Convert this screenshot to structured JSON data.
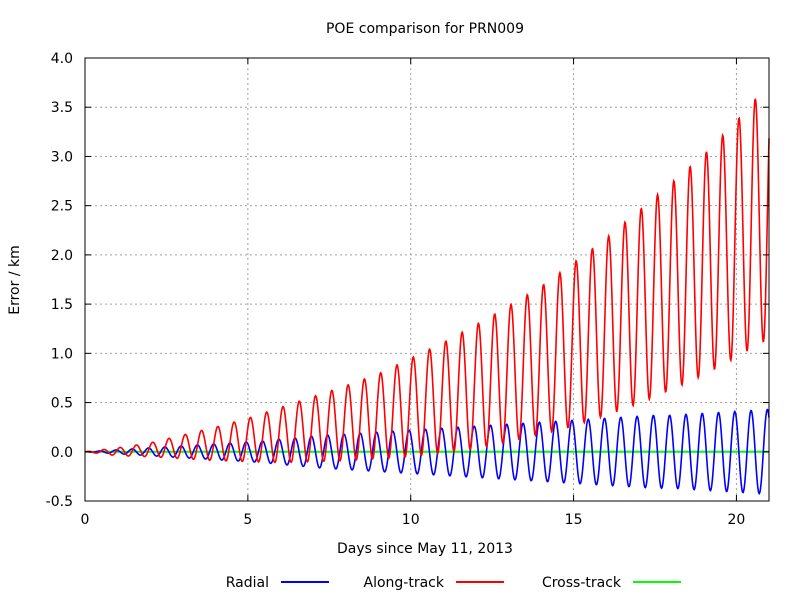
{
  "chart_data": {
    "type": "line",
    "title": "POE comparison for PRN009",
    "xlabel": "Days since May 11, 2013",
    "ylabel": "Error / km",
    "xlim": [
      0,
      21
    ],
    "ylim": [
      -0.5,
      4.0
    ],
    "x_ticks": [
      0,
      5,
      10,
      15,
      20
    ],
    "x_tick_labels": [
      "0",
      "5",
      "10",
      "15",
      "20"
    ],
    "y_ticks": [
      -0.5,
      0.0,
      0.5,
      1.0,
      1.5,
      2.0,
      2.5,
      3.0,
      3.5,
      4.0
    ],
    "y_tick_labels": [
      "-0.5",
      "0.0",
      "0.5",
      "1.0",
      "1.5",
      "2.0",
      "2.5",
      "3.0",
      "3.5",
      "4.0"
    ],
    "grid": true,
    "legend_position": "bottom",
    "series": [
      {
        "name": "Radial",
        "color": "#0000ff",
        "x": [
          0,
          0.5,
          1,
          1.5,
          2,
          2.5,
          3,
          3.5,
          4,
          4.5,
          5,
          5.5,
          6,
          6.5,
          7,
          7.5,
          8,
          8.5,
          9,
          9.5,
          10,
          10.5,
          11,
          11.5,
          12,
          12.5,
          13,
          13.5,
          14,
          14.5,
          15,
          15.5,
          16,
          16.5,
          17,
          17.5,
          18,
          18.5,
          19,
          19.5,
          20,
          20.5,
          21
        ],
        "y_envelope": [
          0,
          0.01,
          0.02,
          0.03,
          0.04,
          0.05,
          0.06,
          0.07,
          0.08,
          0.09,
          0.1,
          0.11,
          0.13,
          0.14,
          0.16,
          0.17,
          0.18,
          0.19,
          0.2,
          0.21,
          0.22,
          0.23,
          0.24,
          0.25,
          0.26,
          0.27,
          0.28,
          0.29,
          0.3,
          0.31,
          0.32,
          0.33,
          0.34,
          0.35,
          0.36,
          0.37,
          0.37,
          0.38,
          0.39,
          0.4,
          0.41,
          0.42,
          0.43
        ],
        "oscillation_period_days": 0.5
      },
      {
        "name": "Along-track",
        "color": "#ff0000",
        "x": [
          0,
          1,
          2,
          3,
          4,
          5,
          6,
          7,
          8,
          9,
          10,
          11,
          12,
          13,
          14,
          15,
          16,
          17,
          18,
          19,
          20,
          21
        ],
        "y_center": [
          0,
          0.0,
          0.02,
          0.05,
          0.08,
          0.12,
          0.17,
          0.23,
          0.29,
          0.36,
          0.45,
          0.55,
          0.66,
          0.79,
          0.93,
          1.09,
          1.27,
          1.47,
          1.68,
          1.9,
          2.16,
          2.45
        ],
        "y_amplitude": [
          0,
          0.04,
          0.07,
          0.12,
          0.17,
          0.22,
          0.28,
          0.33,
          0.38,
          0.43,
          0.5,
          0.56,
          0.63,
          0.69,
          0.75,
          0.83,
          0.9,
          0.98,
          1.05,
          1.12,
          1.2,
          1.3
        ],
        "oscillation_period_days": 0.5
      },
      {
        "name": "Cross-track",
        "color": "#00ff00",
        "x": [
          0,
          21
        ],
        "y": [
          0.0,
          0.0
        ]
      }
    ]
  }
}
